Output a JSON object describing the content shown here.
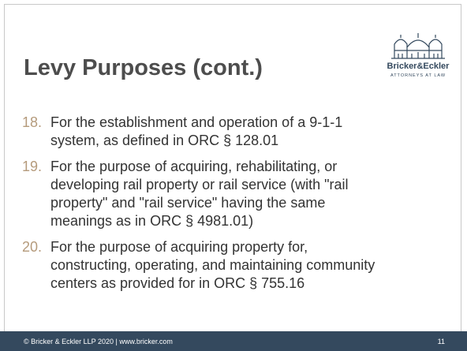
{
  "slide": {
    "title": "Levy Purposes (cont.)",
    "logo": {
      "name": "Bricker&Eckler",
      "tagline": "ATTORNEYS AT LAW"
    },
    "items": [
      {
        "number": "18.",
        "lines": [
          "For the establishment and operation of a 9-1-1",
          "system, as defined in ORC § 128.01"
        ]
      },
      {
        "number": "19.",
        "lines": [
          "For the purpose of acquiring, rehabilitating, or",
          "developing rail property or rail service (with \"rail",
          "property\" and \"rail service\" having the same",
          "meanings as in ORC § 4981.01)"
        ]
      },
      {
        "number": "20.",
        "lines": [
          "For the purpose of acquiring property for,",
          "constructing, operating, and maintaining community",
          "centers as provided for in ORC § 755.16"
        ]
      }
    ],
    "footer": "© Bricker & Eckler LLP 2020 | www.bricker.com",
    "page_number": "11"
  }
}
